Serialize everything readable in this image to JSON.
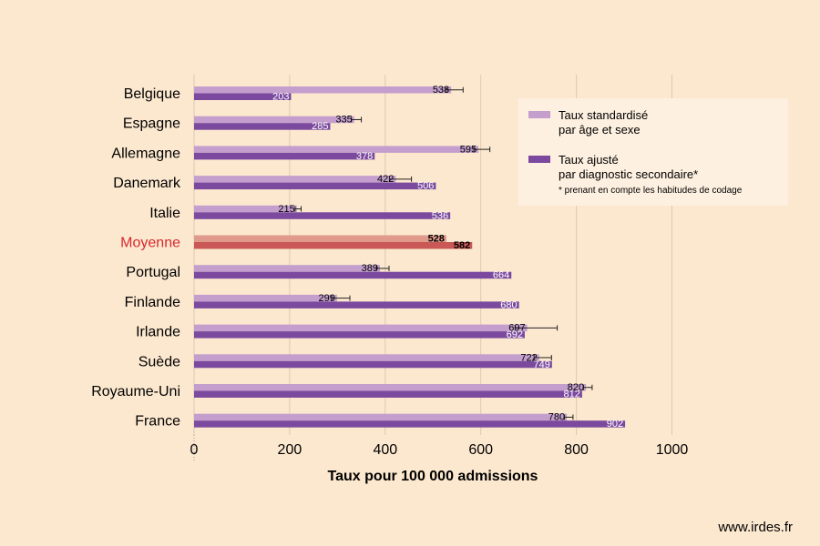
{
  "chart_data": {
    "type": "bar",
    "orientation": "horizontal",
    "categories": [
      "Belgique",
      "Espagne",
      "Allemagne",
      "Danemark",
      "Italie",
      "Moyenne",
      "Portugal",
      "Finlande",
      "Irlande",
      "Suède",
      "Royaume-Uni",
      "France"
    ],
    "highlight_category": "Moyenne",
    "series": [
      {
        "name": "Taux standardisé par âge et sexe",
        "values": [
          538,
          335,
          595,
          422,
          215,
          528,
          389,
          299,
          697,
          722,
          820,
          780
        ],
        "error_upper": [
          563,
          350,
          619,
          455,
          224,
          null,
          408,
          326,
          760,
          748,
          833,
          793
        ],
        "color": "#c49fcd",
        "highlight_color": "#e09a8c"
      },
      {
        "name": "Taux ajusté par diagnostic secondaire*",
        "values": [
          203,
          285,
          378,
          506,
          536,
          582,
          664,
          680,
          692,
          749,
          812,
          902
        ],
        "color": "#7b4a9e",
        "highlight_color": "#c95856"
      }
    ],
    "xlabel": "Taux pour 100 000 admissions",
    "xlim": [
      0,
      1000
    ],
    "xticks": [
      "0",
      "200",
      "400",
      "600",
      "800",
      "1000"
    ],
    "grid": "vertical",
    "legend_position": "top-right",
    "legend": {
      "line1a": "Taux standardisé",
      "line1b": "par âge et sexe",
      "line2a": "Taux ajusté",
      "line2b": "par diagnostic secondaire*",
      "note": "* prenant en compte les habitudes de codage"
    }
  },
  "source": "www.irdes.fr",
  "colors": {
    "background": "#fce8cf",
    "highlight_label": "#d7282f",
    "grid": "#ddc9b2",
    "legend_bg": "#fdf0e0"
  }
}
